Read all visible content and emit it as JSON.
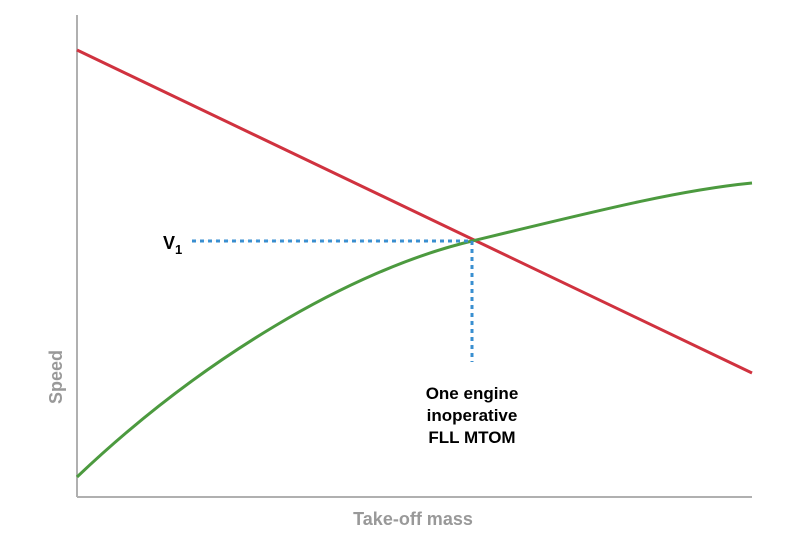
{
  "axes": {
    "y_label": "Speed",
    "x_label": "Take-off mass"
  },
  "v1_label": {
    "main": "V",
    "sub": "1"
  },
  "annotation": {
    "lines": [
      "One engine",
      "inoperative",
      "FLL MTOM"
    ]
  }
}
